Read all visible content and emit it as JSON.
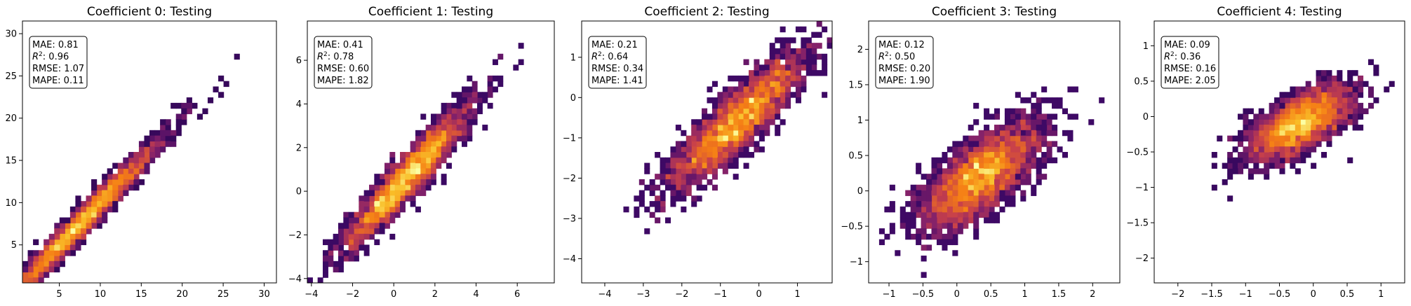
{
  "chart_data": [
    {
      "type": "heatmap",
      "title": "Coefficient 0: Testing",
      "xlim": [
        0.5,
        31.5
      ],
      "ylim": [
        0.5,
        31.5
      ],
      "xticks": [
        5,
        10,
        15,
        20,
        25,
        30
      ],
      "yticks": [
        5,
        10,
        15,
        20,
        25,
        30
      ],
      "trend": {
        "x_center": 7.5,
        "x_spread": 5.0,
        "slope": 1.0,
        "intercept": 0.0,
        "noise": 0.9
      },
      "stats": {
        "mae": "MAE: 0.81",
        "r2_value": ": 0.96",
        "rmse": "RMSE: 1.07",
        "mape": "MAPE: 0.11"
      }
    },
    {
      "type": "heatmap",
      "title": "Coefficient 1: Testing",
      "xlim": [
        -4.2,
        7.8
      ],
      "ylim": [
        -4.2,
        7.8
      ],
      "xticks": [
        -4,
        -2,
        0,
        2,
        4,
        6
      ],
      "yticks": [
        -4,
        -2,
        0,
        2,
        4,
        6
      ],
      "trend": {
        "x_center": 0.6,
        "x_spread": 1.5,
        "slope": 1.0,
        "intercept": 0.0,
        "noise": 0.55
      },
      "stats": {
        "mae": "MAE: 0.41",
        "r2_value": ": 0.78",
        "rmse": "RMSE: 0.60",
        "mape": "MAPE: 1.82"
      }
    },
    {
      "type": "heatmap",
      "title": "Coefficient 2: Testing",
      "xlim": [
        -4.6,
        1.9
      ],
      "ylim": [
        -4.6,
        1.9
      ],
      "xticks": [
        -4,
        -3,
        -2,
        -1,
        0,
        1
      ],
      "yticks": [
        -4,
        -3,
        -2,
        -1,
        0,
        1
      ],
      "trend": {
        "x_center": -0.6,
        "x_spread": 0.9,
        "slope": 0.85,
        "intercept": -0.1,
        "noise": 0.4
      },
      "stats": {
        "mae": "MAE: 0.21",
        "r2_value": ": 0.64",
        "rmse": "RMSE: 0.34",
        "mape": "MAPE: 1.41"
      }
    },
    {
      "type": "heatmap",
      "title": "Coefficient 3: Testing",
      "xlim": [
        -1.3,
        2.4
      ],
      "ylim": [
        -1.3,
        2.4
      ],
      "xticks": [
        -1.0,
        -0.5,
        0.0,
        0.5,
        1.0,
        1.5,
        2.0
      ],
      "yticks": [
        -1.0,
        -0.5,
        0.0,
        0.5,
        1.0,
        1.5,
        2.0
      ],
      "trend": {
        "x_center": 0.35,
        "x_spread": 0.45,
        "slope": 0.6,
        "intercept": 0.0,
        "noise": 0.28
      },
      "stats": {
        "mae": "MAE: 0.12",
        "r2_value": ": 0.50",
        "rmse": "RMSE: 0.20",
        "mape": "MAPE: 1.90"
      }
    },
    {
      "type": "heatmap",
      "title": "Coefficient 4: Testing",
      "xlim": [
        -2.35,
        1.35
      ],
      "ylim": [
        -2.35,
        1.35
      ],
      "xticks": [
        -2.0,
        -1.5,
        -1.0,
        -0.5,
        0.0,
        0.5,
        1.0
      ],
      "yticks": [
        -2.0,
        -1.5,
        -1.0,
        -0.5,
        0.0,
        0.5,
        1.0
      ],
      "trend": {
        "x_center": -0.2,
        "x_spread": 0.38,
        "slope": 0.45,
        "intercept": 0.0,
        "noise": 0.2
      },
      "stats": {
        "mae": "MAE: 0.09",
        "r2_value": ": 0.36",
        "rmse": "RMSE: 0.16",
        "mape": "MAPE: 2.05"
      }
    }
  ]
}
